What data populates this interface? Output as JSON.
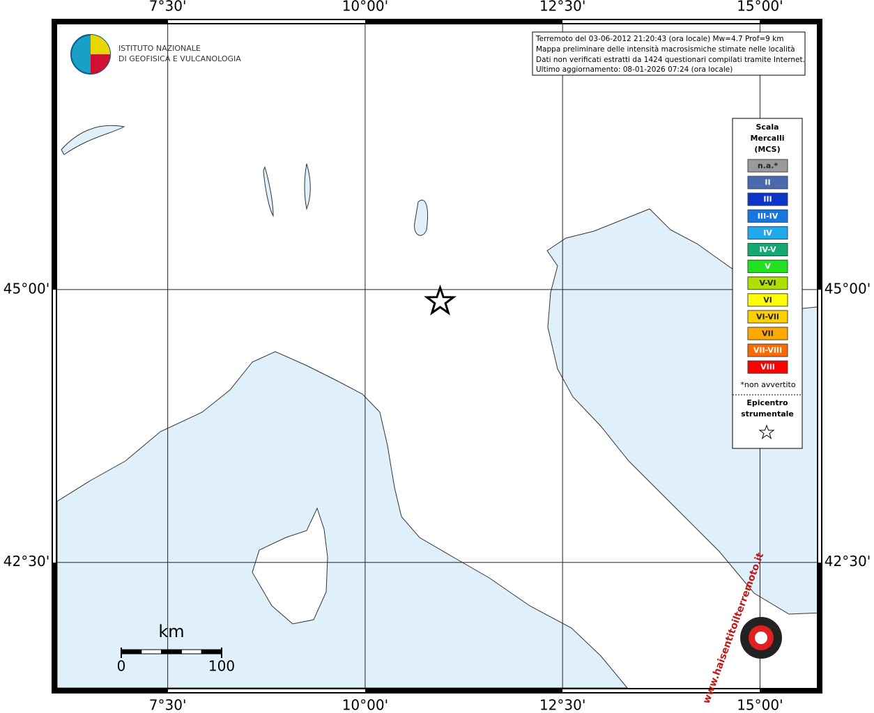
{
  "header": {
    "logo_lines": [
      "ISTITUTO NAZIONALE",
      "DI GEOFISICA E VULCANOLOGIA"
    ]
  },
  "info": {
    "lines": [
      "Terremoto del 03-06-2012 21:20:43 (ora locale) Mw=4.7 Prof=9 km",
      "Mappa preliminare delle intensità macrosismiche stimate nelle località",
      "Dati non verificati estratti da 1424 questionari compilati tramite Internet.",
      "Ultimo aggiornamento: 08-01-2026 07:24 (ora locale)"
    ]
  },
  "map": {
    "xlim": [
      6.1,
      15.72
    ],
    "ylim": [
      41.35,
      47.43
    ],
    "lon_ticks": [
      {
        "value": 7.5,
        "label": "7°30'"
      },
      {
        "value": 10,
        "label": "10°00'"
      },
      {
        "value": 12.5,
        "label": "12°30'"
      },
      {
        "value": 15,
        "label": "15°00'"
      }
    ],
    "lat_ticks": [
      {
        "value": 45,
        "label": "45°00'"
      },
      {
        "value": 42.5,
        "label": "42°30'"
      }
    ],
    "epicenter": {
      "lon": 10.95,
      "lat": 44.89
    }
  },
  "legend": {
    "title_lines": [
      "Scala",
      "Mercalli",
      "(MCS)"
    ],
    "items": [
      {
        "label": "n.a.*",
        "color": "#9a9a9a"
      },
      {
        "label": "II",
        "color": "#4a6ab0"
      },
      {
        "label": "III",
        "color": "#0a35c8"
      },
      {
        "label": "III-IV",
        "color": "#1677e0"
      },
      {
        "label": "IV",
        "color": "#22a8ec"
      },
      {
        "label": "IV-V",
        "color": "#16a872"
      },
      {
        "label": "V",
        "color": "#22e022"
      },
      {
        "label": "V-VI",
        "color": "#aee000"
      },
      {
        "label": "VI",
        "color": "#ffff00"
      },
      {
        "label": "VI-VII",
        "color": "#ffd000"
      },
      {
        "label": "VII",
        "color": "#ffa800"
      },
      {
        "label": "VII-VIII",
        "color": "#ff6a00"
      },
      {
        "label": "VIII",
        "color": "#ff0000"
      }
    ],
    "note": "*non avvertito",
    "epicenter_lines": [
      "Epicentro",
      "strumentale"
    ]
  },
  "scale_bar": {
    "unit": "km",
    "ticks": [
      0,
      100
    ]
  },
  "watermark": "www.haisentitoilterremoto.it"
}
